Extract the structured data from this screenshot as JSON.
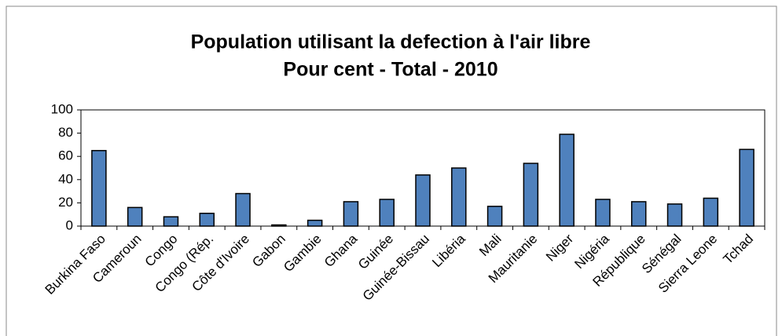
{
  "chart_data": {
    "type": "bar",
    "title": "Population utilisant la defection à l'air libre",
    "subtitle": "Pour cent - Total - 2010",
    "categories": [
      "Burkina Faso",
      "Cameroun",
      "Congo",
      "Congo (Rép.",
      "Côte d'Ivoire",
      "Gabon",
      "Gambie",
      "Ghana",
      "Guinée",
      "Guinée-Bissau",
      "Libéria",
      "Mali",
      "Mauritanie",
      "Niger",
      "Nigéria",
      "République",
      "Sénégal",
      "Sierra Leone",
      "Tchad"
    ],
    "values": [
      65,
      16,
      8,
      11,
      28,
      1,
      5,
      21,
      23,
      44,
      50,
      17,
      54,
      79,
      23,
      21,
      19,
      24,
      66
    ],
    "color": "#4f81bd",
    "ylim": [
      0,
      100
    ],
    "yticks": [
      0,
      20,
      40,
      60,
      80,
      100
    ],
    "grid": false
  }
}
